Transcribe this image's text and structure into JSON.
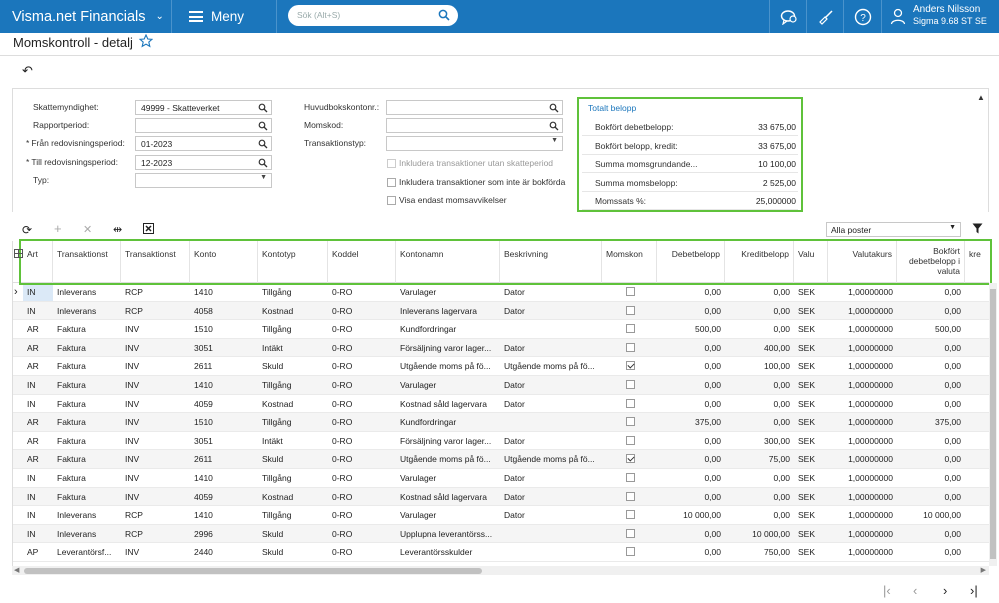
{
  "topbar": {
    "brand": "Visma.net Financials",
    "menu_label": "Meny",
    "search_placeholder": "Sök (Alt+S)",
    "user_name": "Anders Nilsson",
    "user_company": "Sigma 9.68 ST SE"
  },
  "page": {
    "title": "Momskontroll - detalj"
  },
  "form": {
    "left": [
      {
        "label": "Skattemyndighet:",
        "value": "49999 - Skatteverket",
        "required": false,
        "control": "lookup"
      },
      {
        "label": "Rapportperiod:",
        "value": "",
        "required": false,
        "control": "lookup"
      },
      {
        "label": "Från redovisningsperiod:",
        "value": "01-2023",
        "required": true,
        "control": "lookup"
      },
      {
        "label": "Till redovisningsperiod:",
        "value": "12-2023",
        "required": true,
        "control": "lookup"
      },
      {
        "label": "Typ:",
        "value": "",
        "required": false,
        "control": "dropdown"
      }
    ],
    "middle": [
      {
        "label": "Huvudbokskontonr.:",
        "value": "",
        "control": "lookup"
      },
      {
        "label": "Momskod:",
        "value": "",
        "control": "lookup"
      },
      {
        "label": "Transaktionstyp:",
        "value": "",
        "control": "dropdown"
      }
    ],
    "checkboxes": [
      {
        "label": "Inkludera transaktioner utan skatteperiod",
        "checked": false,
        "disabled": true
      },
      {
        "label": "Inkludera transaktioner som inte är bokförda",
        "checked": false,
        "disabled": false
      },
      {
        "label": "Visa endast momsavvikelser",
        "checked": false,
        "disabled": false
      }
    ]
  },
  "totals": {
    "title": "Totalt belopp",
    "rows": [
      {
        "label": "Bokfört debetbelopp:",
        "value": "33 675,00"
      },
      {
        "label": "Bokfört belopp, kredit:",
        "value": "33 675,00"
      },
      {
        "label": "Summa momsgrundande...",
        "value": "10 100,00"
      },
      {
        "label": "Summa momsbelopp:",
        "value": "2 525,00"
      },
      {
        "label": "Momssats %:",
        "value": "25,000000"
      }
    ]
  },
  "grid_toolbar": {
    "filter_value": "Alla poster"
  },
  "grid": {
    "columns": [
      "Art",
      "Transaktionst",
      "Transaktionst",
      "Konto",
      "Kontotyp",
      "Koddel",
      "Kontonamn",
      "Beskrivning",
      "Momskon",
      "Debetbelopp",
      "Kreditbelopp",
      "Valu",
      "Valutakurs",
      "Bokfört debetbelopp i valuta",
      "kre"
    ],
    "rows": [
      {
        "art": "IN",
        "t1": "Inleverans",
        "t2": "RCP",
        "konto": "1410",
        "typ": "Tillgång",
        "kod": "0-RO",
        "namn": "Varulager",
        "besk": "Dator",
        "mk": false,
        "deb": "0,00",
        "kre": "0,00",
        "val": "SEK",
        "kurs": "1,00000000",
        "bdv": "0,00"
      },
      {
        "art": "IN",
        "t1": "Inleverans",
        "t2": "RCP",
        "konto": "4058",
        "typ": "Kostnad",
        "kod": "0-RO",
        "namn": "Inleverans lagervara",
        "besk": "Dator",
        "mk": false,
        "deb": "0,00",
        "kre": "0,00",
        "val": "SEK",
        "kurs": "1,00000000",
        "bdv": "0,00"
      },
      {
        "art": "AR",
        "t1": "Faktura",
        "t2": "INV",
        "konto": "1510",
        "typ": "Tillgång",
        "kod": "0-RO",
        "namn": "Kundfordringar",
        "besk": "",
        "mk": false,
        "deb": "500,00",
        "kre": "0,00",
        "val": "SEK",
        "kurs": "1,00000000",
        "bdv": "500,00"
      },
      {
        "art": "AR",
        "t1": "Faktura",
        "t2": "INV",
        "konto": "3051",
        "typ": "Intäkt",
        "kod": "0-RO",
        "namn": "Försäljning varor lager...",
        "besk": "Dator",
        "mk": false,
        "deb": "0,00",
        "kre": "400,00",
        "val": "SEK",
        "kurs": "1,00000000",
        "bdv": "0,00"
      },
      {
        "art": "AR",
        "t1": "Faktura",
        "t2": "INV",
        "konto": "2611",
        "typ": "Skuld",
        "kod": "0-RO",
        "namn": "Utgående moms på fö...",
        "besk": "Utgående moms på fö...",
        "mk": true,
        "deb": "0,00",
        "kre": "100,00",
        "val": "SEK",
        "kurs": "1,00000000",
        "bdv": "0,00"
      },
      {
        "art": "IN",
        "t1": "Faktura",
        "t2": "INV",
        "konto": "1410",
        "typ": "Tillgång",
        "kod": "0-RO",
        "namn": "Varulager",
        "besk": "Dator",
        "mk": false,
        "deb": "0,00",
        "kre": "0,00",
        "val": "SEK",
        "kurs": "1,00000000",
        "bdv": "0,00"
      },
      {
        "art": "IN",
        "t1": "Faktura",
        "t2": "INV",
        "konto": "4059",
        "typ": "Kostnad",
        "kod": "0-RO",
        "namn": "Kostnad såld lagervara",
        "besk": "Dator",
        "mk": false,
        "deb": "0,00",
        "kre": "0,00",
        "val": "SEK",
        "kurs": "1,00000000",
        "bdv": "0,00"
      },
      {
        "art": "AR",
        "t1": "Faktura",
        "t2": "INV",
        "konto": "1510",
        "typ": "Tillgång",
        "kod": "0-RO",
        "namn": "Kundfordringar",
        "besk": "",
        "mk": false,
        "deb": "375,00",
        "kre": "0,00",
        "val": "SEK",
        "kurs": "1,00000000",
        "bdv": "375,00"
      },
      {
        "art": "AR",
        "t1": "Faktura",
        "t2": "INV",
        "konto": "3051",
        "typ": "Intäkt",
        "kod": "0-RO",
        "namn": "Försäljning varor lager...",
        "besk": "Dator",
        "mk": false,
        "deb": "0,00",
        "kre": "300,00",
        "val": "SEK",
        "kurs": "1,00000000",
        "bdv": "0,00"
      },
      {
        "art": "AR",
        "t1": "Faktura",
        "t2": "INV",
        "konto": "2611",
        "typ": "Skuld",
        "kod": "0-RO",
        "namn": "Utgående moms på fö...",
        "besk": "Utgående moms på fö...",
        "mk": true,
        "deb": "0,00",
        "kre": "75,00",
        "val": "SEK",
        "kurs": "1,00000000",
        "bdv": "0,00"
      },
      {
        "art": "IN",
        "t1": "Faktura",
        "t2": "INV",
        "konto": "1410",
        "typ": "Tillgång",
        "kod": "0-RO",
        "namn": "Varulager",
        "besk": "Dator",
        "mk": false,
        "deb": "0,00",
        "kre": "0,00",
        "val": "SEK",
        "kurs": "1,00000000",
        "bdv": "0,00"
      },
      {
        "art": "IN",
        "t1": "Faktura",
        "t2": "INV",
        "konto": "4059",
        "typ": "Kostnad",
        "kod": "0-RO",
        "namn": "Kostnad såld lagervara",
        "besk": "Dator",
        "mk": false,
        "deb": "0,00",
        "kre": "0,00",
        "val": "SEK",
        "kurs": "1,00000000",
        "bdv": "0,00"
      },
      {
        "art": "IN",
        "t1": "Inleverans",
        "t2": "RCP",
        "konto": "1410",
        "typ": "Tillgång",
        "kod": "0-RO",
        "namn": "Varulager",
        "besk": "Dator",
        "mk": false,
        "deb": "10 000,00",
        "kre": "0,00",
        "val": "SEK",
        "kurs": "1,00000000",
        "bdv": "10 000,00"
      },
      {
        "art": "IN",
        "t1": "Inleverans",
        "t2": "RCP",
        "konto": "2996",
        "typ": "Skuld",
        "kod": "0-RO",
        "namn": "Upplupna leverantörss...",
        "besk": "",
        "mk": false,
        "deb": "0,00",
        "kre": "10 000,00",
        "val": "SEK",
        "kurs": "1,00000000",
        "bdv": "0,00"
      },
      {
        "art": "AP",
        "t1": "Leverantörsf...",
        "t2": "INV",
        "konto": "2440",
        "typ": "Skuld",
        "kod": "0-RO",
        "namn": "Leverantörsskulder",
        "besk": "",
        "mk": false,
        "deb": "0,00",
        "kre": "750,00",
        "val": "SEK",
        "kurs": "1,00000000",
        "bdv": "0,00"
      }
    ]
  },
  "colors": {
    "topbar": "#1b76bc",
    "highlight": "#5fc23a",
    "link": "#1b76bc"
  }
}
